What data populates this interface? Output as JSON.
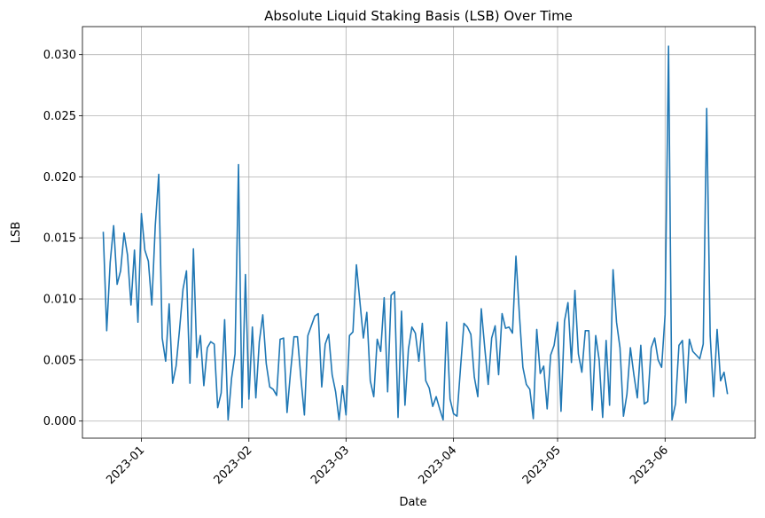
{
  "chart_data": {
    "type": "line",
    "title": "Absolute Liquid Staking Basis (LSB) Over Time",
    "x_label": "Date",
    "y_label": "LSB",
    "x": [
      "2022-12-21",
      "2022-12-22",
      "2022-12-23",
      "2022-12-24",
      "2022-12-25",
      "2022-12-26",
      "2022-12-27",
      "2022-12-28",
      "2022-12-29",
      "2022-12-30",
      "2022-12-31",
      "2023-01-01",
      "2023-01-02",
      "2023-01-03",
      "2023-01-04",
      "2023-01-05",
      "2023-01-06",
      "2023-01-07",
      "2023-01-08",
      "2023-01-09",
      "2023-01-10",
      "2023-01-11",
      "2023-01-12",
      "2023-01-13",
      "2023-01-14",
      "2023-01-15",
      "2023-01-16",
      "2023-01-17",
      "2023-01-18",
      "2023-01-19",
      "2023-01-20",
      "2023-01-21",
      "2023-01-22",
      "2023-01-23",
      "2023-01-24",
      "2023-01-25",
      "2023-01-26",
      "2023-01-27",
      "2023-01-28",
      "2023-01-29",
      "2023-01-30",
      "2023-01-31",
      "2023-02-01",
      "2023-02-02",
      "2023-02-03",
      "2023-02-04",
      "2023-02-05",
      "2023-02-06",
      "2023-02-07",
      "2023-02-08",
      "2023-02-09",
      "2023-02-10",
      "2023-02-11",
      "2023-02-12",
      "2023-02-13",
      "2023-02-14",
      "2023-02-15",
      "2023-02-16",
      "2023-02-17",
      "2023-02-18",
      "2023-02-19",
      "2023-02-20",
      "2023-02-21",
      "2023-02-22",
      "2023-02-23",
      "2023-02-24",
      "2023-02-25",
      "2023-02-26",
      "2023-02-27",
      "2023-02-28",
      "2023-03-01",
      "2023-03-02",
      "2023-03-03",
      "2023-03-04",
      "2023-03-05",
      "2023-03-06",
      "2023-03-07",
      "2023-03-08",
      "2023-03-09",
      "2023-03-10",
      "2023-03-11",
      "2023-03-12",
      "2023-03-13",
      "2023-03-14",
      "2023-03-15",
      "2023-03-16",
      "2023-03-17",
      "2023-03-18",
      "2023-03-19",
      "2023-03-20",
      "2023-03-21",
      "2023-03-22",
      "2023-03-23",
      "2023-03-24",
      "2023-03-25",
      "2023-03-26",
      "2023-03-27",
      "2023-03-28",
      "2023-03-29",
      "2023-03-30",
      "2023-03-31",
      "2023-04-01",
      "2023-04-02",
      "2023-04-03",
      "2023-04-04",
      "2023-04-05",
      "2023-04-06",
      "2023-04-07",
      "2023-04-08",
      "2023-04-09",
      "2023-04-10",
      "2023-04-11",
      "2023-04-12",
      "2023-04-13",
      "2023-04-14",
      "2023-04-15",
      "2023-04-16",
      "2023-04-17",
      "2023-04-18",
      "2023-04-19",
      "2023-04-20",
      "2023-04-21",
      "2023-04-22",
      "2023-04-23",
      "2023-04-24",
      "2023-04-25",
      "2023-04-26",
      "2023-04-27",
      "2023-04-28",
      "2023-04-29",
      "2023-04-30",
      "2023-05-01",
      "2023-05-02",
      "2023-05-03",
      "2023-05-04",
      "2023-05-05",
      "2023-05-06",
      "2023-05-07",
      "2023-05-08",
      "2023-05-09",
      "2023-05-10",
      "2023-05-11",
      "2023-05-12",
      "2023-05-13",
      "2023-05-14",
      "2023-05-15",
      "2023-05-16",
      "2023-05-17",
      "2023-05-18",
      "2023-05-19",
      "2023-05-20",
      "2023-05-21",
      "2023-05-22",
      "2023-05-23",
      "2023-05-24",
      "2023-05-25",
      "2023-05-26",
      "2023-05-27",
      "2023-05-28",
      "2023-05-29",
      "2023-05-30",
      "2023-05-31",
      "2023-06-01",
      "2023-06-02",
      "2023-06-03",
      "2023-06-04",
      "2023-06-05",
      "2023-06-06",
      "2023-06-07",
      "2023-06-08",
      "2023-06-09",
      "2023-06-10",
      "2023-06-11",
      "2023-06-12",
      "2023-06-13",
      "2023-06-14",
      "2023-06-15",
      "2023-06-16",
      "2023-06-17",
      "2023-06-18",
      "2023-06-19"
    ],
    "series": [
      {
        "name": "LSB",
        "color": "#1f77b4",
        "values": [
          0.0155,
          0.0074,
          0.013,
          0.016,
          0.0112,
          0.0123,
          0.0154,
          0.0136,
          0.0095,
          0.014,
          0.0081,
          0.017,
          0.014,
          0.0131,
          0.0095,
          0.016,
          0.0202,
          0.0068,
          0.0049,
          0.0096,
          0.0031,
          0.0045,
          0.0075,
          0.0108,
          0.0123,
          0.0031,
          0.0141,
          0.0052,
          0.007,
          0.0029,
          0.006,
          0.0065,
          0.0063,
          0.0011,
          0.0023,
          0.0083,
          0.0001,
          0.0035,
          0.0055,
          0.021,
          0.0011,
          0.012,
          0.0018,
          0.0077,
          0.0019,
          0.0065,
          0.0087,
          0.0047,
          0.0028,
          0.0026,
          0.0021,
          0.0067,
          0.0068,
          0.0007,
          0.004,
          0.0069,
          0.0069,
          0.0035,
          0.0005,
          0.007,
          0.0078,
          0.0086,
          0.0088,
          0.0028,
          0.0063,
          0.0071,
          0.0038,
          0.0024,
          0.0001,
          0.0029,
          0.0005,
          0.007,
          0.0073,
          0.0128,
          0.0098,
          0.0068,
          0.0089,
          0.0033,
          0.002,
          0.0067,
          0.0057,
          0.0101,
          0.0024,
          0.0103,
          0.0106,
          0.0003,
          0.009,
          0.0013,
          0.0059,
          0.0077,
          0.0072,
          0.0049,
          0.008,
          0.0033,
          0.0027,
          0.0012,
          0.002,
          0.001,
          0.0001,
          0.0081,
          0.0018,
          0.0006,
          0.0004,
          0.0043,
          0.008,
          0.0077,
          0.0071,
          0.0036,
          0.002,
          0.0092,
          0.006,
          0.003,
          0.0068,
          0.0078,
          0.0038,
          0.0088,
          0.0076,
          0.0077,
          0.0072,
          0.0135,
          0.0087,
          0.0044,
          0.003,
          0.0026,
          0.0002,
          0.0075,
          0.0039,
          0.0045,
          0.001,
          0.0054,
          0.0062,
          0.0081,
          0.0008,
          0.0082,
          0.0097,
          0.0048,
          0.0107,
          0.0055,
          0.004,
          0.0074,
          0.0074,
          0.0009,
          0.007,
          0.005,
          0.0003,
          0.0066,
          0.0013,
          0.0124,
          0.0081,
          0.006,
          0.0004,
          0.0022,
          0.006,
          0.0038,
          0.0019,
          0.0062,
          0.0014,
          0.0016,
          0.006,
          0.0068,
          0.005,
          0.0044,
          0.0087,
          0.0307,
          0.0001,
          0.0014,
          0.0062,
          0.0066,
          0.0015,
          0.0067,
          0.0057,
          0.0054,
          0.0051,
          0.0063,
          0.0256,
          0.007,
          0.002,
          0.0075,
          0.0033,
          0.004,
          0.0022
        ]
      }
    ],
    "xlim": [
      "2022-12-15",
      "2023-06-27"
    ],
    "xticks": [
      {
        "value": "2023-01-01",
        "label": "2023-01"
      },
      {
        "value": "2023-02-01",
        "label": "2023-02"
      },
      {
        "value": "2023-03-01",
        "label": "2023-03"
      },
      {
        "value": "2023-04-01",
        "label": "2023-04"
      },
      {
        "value": "2023-05-01",
        "label": "2023-05"
      },
      {
        "value": "2023-06-01",
        "label": "2023-06"
      }
    ],
    "ylim": [
      -0.0014,
      0.0323
    ],
    "yticks": [
      {
        "value": 0,
        "label": "0.000"
      },
      {
        "value": 0.005,
        "label": "0.005"
      },
      {
        "value": 0.01,
        "label": "0.010"
      },
      {
        "value": 0.015,
        "label": "0.015"
      },
      {
        "value": 0.02,
        "label": "0.020"
      },
      {
        "value": 0.025,
        "label": "0.025"
      },
      {
        "value": 0.03,
        "label": "0.030"
      }
    ],
    "grid": true
  }
}
